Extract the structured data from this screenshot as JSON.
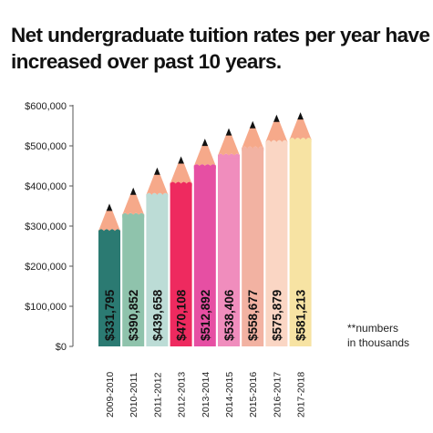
{
  "title_line1": "Net undergraduate tuition rates per year have",
  "title_line2": "increased over past 10 years.",
  "note_line1": "**numbers",
  "note_line2": "in thousands",
  "chart_data": {
    "type": "bar",
    "categories": [
      "2009-2010",
      "2010-2011",
      "2011-2012",
      "2012-2013",
      "2013-2014",
      "2014-2015",
      "2015-2016",
      "2016-2017",
      "2017-2018"
    ],
    "values": [
      331795,
      390852,
      439658,
      470108,
      512892,
      538406,
      558677,
      575879,
      581213
    ],
    "value_labels": [
      "$331,795",
      "$390,852",
      "$439,658",
      "$470,108",
      "$512,892",
      "$538,406",
      "$558,677",
      "$575,879",
      "$581,213"
    ],
    "bar_fill_values": [
      290000,
      330000,
      380000,
      408000,
      452000,
      478000,
      496000,
      512000,
      518000
    ],
    "colors": [
      "#2b7a72",
      "#8fc3ac",
      "#bcdcd6",
      "#ee2a5f",
      "#e64fa3",
      "#f08dbd",
      "#f2b2a2",
      "#fad6c4",
      "#f7e3a3"
    ],
    "pencil_wood_color": "#f6a98a",
    "pencil_tip_color": "#111111",
    "yticks": [
      0,
      100000,
      200000,
      300000,
      400000,
      500000,
      600000
    ],
    "ytick_labels": [
      "$0",
      "$100,000",
      "$200,000",
      "$300,000",
      "$400,000",
      "$500,000",
      "$600,000"
    ],
    "ylim": [
      0,
      600000
    ],
    "grid": false
  }
}
